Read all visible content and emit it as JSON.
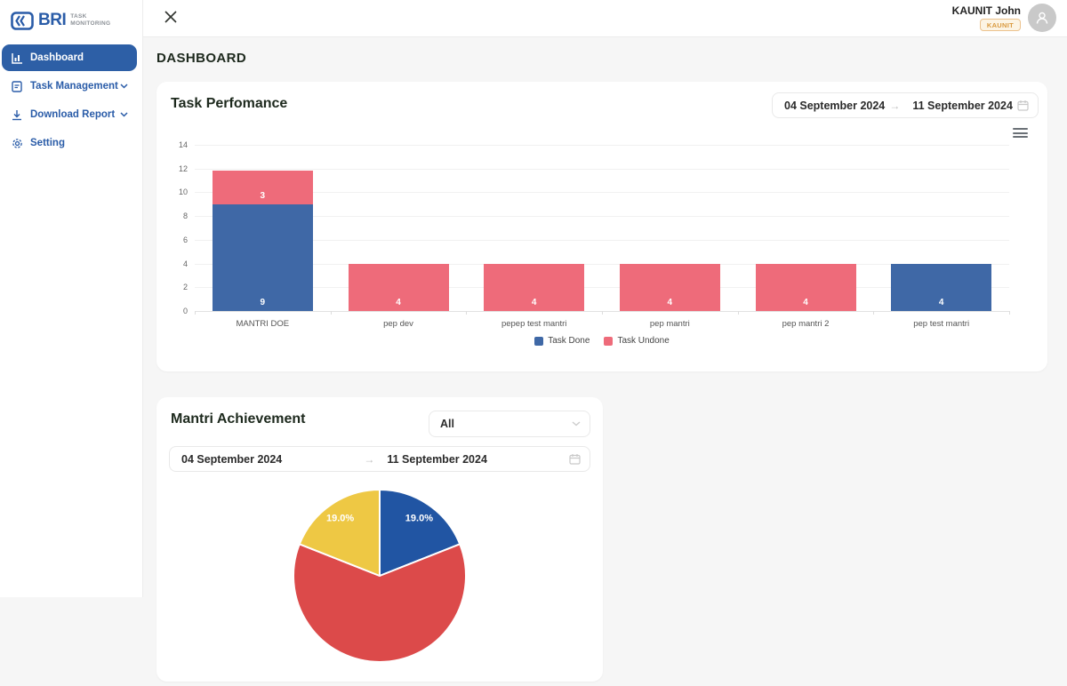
{
  "brand": {
    "name": "BRI",
    "subtitle_line1": "TASK",
    "subtitle_line2": "MONITORING"
  },
  "user": {
    "name": "KAUNIT John",
    "badge": "KAUNIT"
  },
  "sidebar": {
    "items": [
      {
        "label": "Dashboard",
        "icon": "dashboard-chart-icon",
        "active": true
      },
      {
        "label": "Task Management",
        "icon": "task-icon",
        "chevron": true
      },
      {
        "label": "Download Report",
        "icon": "download-icon",
        "chevron": true
      },
      {
        "label": "Setting",
        "icon": "gear-icon"
      }
    ]
  },
  "page": {
    "title": "DASHBOARD"
  },
  "task_performance": {
    "title": "Task Perfomance",
    "date_from": "04 September 2024",
    "date_to": "11 September 2024"
  },
  "mantri_achievement": {
    "title": "Mantri Achievement",
    "filter_value": "All",
    "date_from": "04 September 2024",
    "date_to": "11 September 2024"
  },
  "chart_data": [
    {
      "type": "bar",
      "stacked": true,
      "title": "Task Perfomance",
      "categories": [
        "MANTRI DOE",
        "pep dev",
        "pepep test mantri",
        "pep mantri",
        "pep mantri 2",
        "pep test mantri"
      ],
      "series": [
        {
          "name": "Task Done",
          "color": "#3f68a6",
          "values": [
            9,
            0,
            0,
            0,
            0,
            4
          ]
        },
        {
          "name": "Task Undone",
          "color": "#ee6b7a",
          "values": [
            3,
            4,
            4,
            4,
            4,
            0
          ]
        }
      ],
      "xlabel": "",
      "ylabel": "",
      "ylim": [
        0,
        14
      ],
      "yticks": [
        0,
        2,
        4,
        6,
        8,
        10,
        12,
        14
      ],
      "grid": true,
      "legend_position": "bottom"
    },
    {
      "type": "pie",
      "title": "Mantri Achievement",
      "slices": [
        {
          "color": "#2155a3",
          "value": 19.0,
          "label": "19.0%",
          "label_visible": true
        },
        {
          "color": "#dc4a4a",
          "value": 62.0,
          "label": "",
          "label_visible": false
        },
        {
          "color": "#eec844",
          "value": 19.0,
          "label": "19.0%",
          "label_visible": true
        }
      ]
    }
  ]
}
